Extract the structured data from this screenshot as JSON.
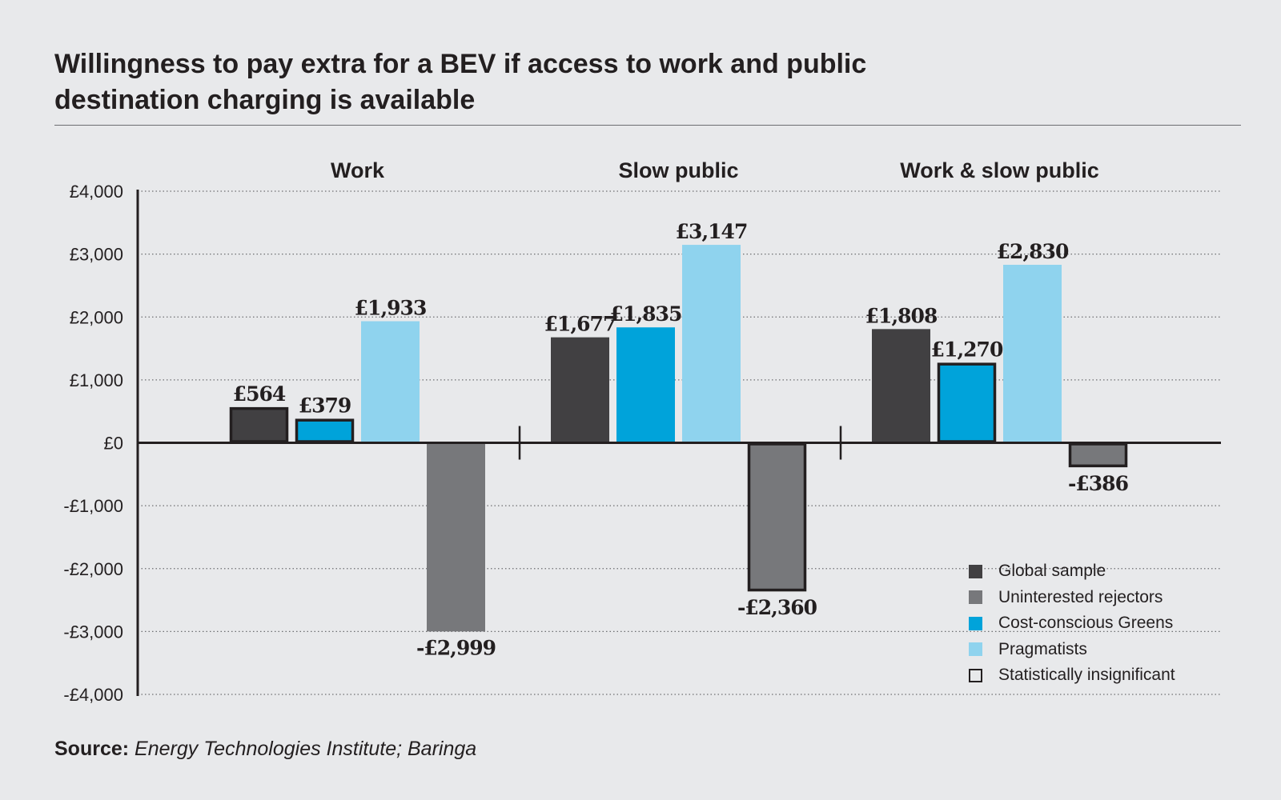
{
  "title": "Willingness to pay extra for a BEV if access to work and public destination charging is available",
  "source": {
    "label": "Source:",
    "text": "Energy Technologies Institute; Baringa"
  },
  "colors": {
    "global": "#414042",
    "uninterested": "#77787b",
    "cost_greens": "#00a3da",
    "pragmatists": "#8fd3ee",
    "outline": "#231f20",
    "background": "#e8e9eb"
  },
  "legend": [
    {
      "label": "Global sample",
      "key": "global"
    },
    {
      "label": "Uninterested rejectors",
      "key": "uninterested"
    },
    {
      "label": "Cost-conscious Greens",
      "key": "cost_greens"
    },
    {
      "label": "Pragmatists",
      "key": "pragmatists"
    },
    {
      "label": "Statistically insignificant",
      "key": "insignificant"
    }
  ],
  "chart_data": {
    "type": "bar",
    "title": "Willingness to pay extra for a BEV if access to work and public destination charging is available",
    "categories": [
      "Work",
      "Slow public",
      "Work & slow public"
    ],
    "ylim": [
      -4000,
      4000
    ],
    "yticks": [
      {
        "value": 4000,
        "label": "£4,000"
      },
      {
        "value": 3000,
        "label": "£3,000"
      },
      {
        "value": 2000,
        "label": "£2,000"
      },
      {
        "value": 1000,
        "label": "£1,000"
      },
      {
        "value": 0,
        "label": "£0"
      },
      {
        "value": -1000,
        "label": "-£1,000"
      },
      {
        "value": -2000,
        "label": "-£2,000"
      },
      {
        "value": -3000,
        "label": "-£3,000"
      },
      {
        "value": -4000,
        "label": "-£4,000"
      }
    ],
    "grid": "dotted horizontal",
    "legend_position": "bottom-right",
    "series": [
      {
        "name": "Global sample",
        "key": "global",
        "values": [
          564,
          1677,
          1808
        ],
        "labels": [
          "£564",
          "£1,677",
          "£1,808"
        ],
        "insignificant": [
          true,
          false,
          false
        ]
      },
      {
        "name": "Cost-conscious Greens",
        "key": "cost_greens",
        "values": [
          379,
          1835,
          1270
        ],
        "labels": [
          "£379",
          "£1,835",
          "£1,270"
        ],
        "insignificant": [
          true,
          false,
          true
        ]
      },
      {
        "name": "Pragmatists",
        "key": "pragmatists",
        "values": [
          1933,
          3147,
          2830
        ],
        "labels": [
          "£1,933",
          "£3,147",
          "£2,830"
        ],
        "insignificant": [
          false,
          false,
          false
        ]
      },
      {
        "name": "Uninterested rejectors",
        "key": "uninterested",
        "values": [
          -2999,
          -2360,
          -386
        ],
        "labels": [
          "-£2,999",
          "-£2,360",
          "-£386"
        ],
        "insignificant": [
          false,
          true,
          true
        ]
      }
    ]
  }
}
